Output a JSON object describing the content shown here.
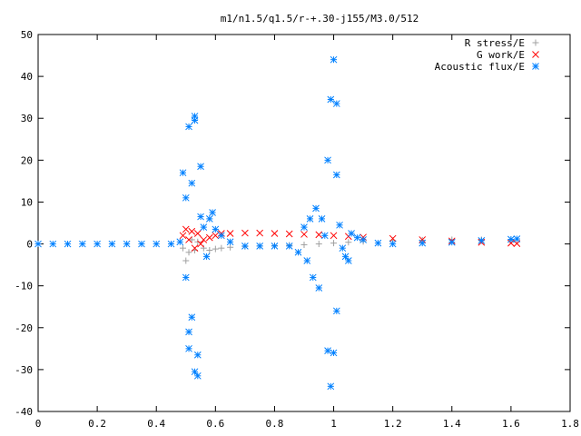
{
  "chart_data": {
    "type": "scatter",
    "title": "m1/n1.5/q1.5/r-+.30-j155/M3.0/512",
    "xlabel": "",
    "ylabel": "",
    "xlim": [
      0,
      1.8
    ],
    "ylim": [
      -40,
      50
    ],
    "xticks": [
      "0",
      "0.2",
      "0.4",
      "0.6",
      "0.8",
      "1",
      "1.2",
      "1.4",
      "1.6",
      "1.8"
    ],
    "yticks": [
      "50",
      "40",
      "30",
      "20",
      "10",
      "0",
      "-10",
      "-20",
      "-30",
      "-40"
    ],
    "grid": false,
    "legend_position": "top-right",
    "series": [
      {
        "name": "R stress/E",
        "marker": "plus",
        "color": "#a0a0a0",
        "points": [
          [
            0.49,
            -1.0
          ],
          [
            0.5,
            -4.0
          ],
          [
            0.51,
            -2.0
          ],
          [
            0.52,
            1.0
          ],
          [
            0.53,
            -1.5
          ],
          [
            0.54,
            0.5
          ],
          [
            0.56,
            -1.0
          ],
          [
            0.58,
            -1.5
          ],
          [
            0.6,
            -1.2
          ],
          [
            0.62,
            -1.0
          ],
          [
            0.65,
            -0.8
          ],
          [
            0.7,
            -0.6
          ],
          [
            0.75,
            -0.5
          ],
          [
            0.8,
            -0.4
          ],
          [
            0.85,
            -0.3
          ],
          [
            0.9,
            -0.2
          ],
          [
            0.95,
            0.0
          ],
          [
            1.0,
            0.2
          ],
          [
            1.05,
            0.4
          ],
          [
            1.1,
            0.6
          ],
          [
            1.2,
            0.8
          ],
          [
            1.3,
            0.9
          ],
          [
            1.4,
            1.0
          ],
          [
            1.5,
            1.0
          ],
          [
            1.6,
            1.0
          ]
        ]
      },
      {
        "name": "G work/E",
        "marker": "cross",
        "color": "#ff0000",
        "points": [
          [
            0.49,
            2.0
          ],
          [
            0.5,
            3.5
          ],
          [
            0.51,
            1.0
          ],
          [
            0.52,
            3.0
          ],
          [
            0.53,
            -1.0
          ],
          [
            0.54,
            2.5
          ],
          [
            0.55,
            0.0
          ],
          [
            0.56,
            1.0
          ],
          [
            0.58,
            1.5
          ],
          [
            0.6,
            2.0
          ],
          [
            0.62,
            2.5
          ],
          [
            0.65,
            2.5
          ],
          [
            0.7,
            2.6
          ],
          [
            0.75,
            2.6
          ],
          [
            0.8,
            2.5
          ],
          [
            0.85,
            2.4
          ],
          [
            0.9,
            2.3
          ],
          [
            0.95,
            2.2
          ],
          [
            1.0,
            2.0
          ],
          [
            1.05,
            1.8
          ],
          [
            1.1,
            1.6
          ],
          [
            1.2,
            1.3
          ],
          [
            1.3,
            1.0
          ],
          [
            1.4,
            0.7
          ],
          [
            1.5,
            0.4
          ],
          [
            1.6,
            0.2
          ],
          [
            1.62,
            0.1
          ]
        ]
      },
      {
        "name": "Acoustic flux/E",
        "marker": "star",
        "color": "#0080ff",
        "points": [
          [
            0.0,
            0.0
          ],
          [
            0.05,
            0.0
          ],
          [
            0.1,
            0.0
          ],
          [
            0.15,
            0.0
          ],
          [
            0.2,
            0.0
          ],
          [
            0.25,
            0.0
          ],
          [
            0.3,
            0.0
          ],
          [
            0.35,
            0.0
          ],
          [
            0.4,
            0.0
          ],
          [
            0.45,
            0.0
          ],
          [
            0.48,
            0.5
          ],
          [
            0.49,
            17.0
          ],
          [
            0.5,
            11.0
          ],
          [
            0.5,
            -8.0
          ],
          [
            0.51,
            28.0
          ],
          [
            0.51,
            -21.0
          ],
          [
            0.51,
            -25.0
          ],
          [
            0.52,
            14.5
          ],
          [
            0.52,
            -17.5
          ],
          [
            0.53,
            30.5
          ],
          [
            0.53,
            29.5
          ],
          [
            0.53,
            -30.5
          ],
          [
            0.54,
            -31.5
          ],
          [
            0.54,
            -26.5
          ],
          [
            0.55,
            18.5
          ],
          [
            0.55,
            6.5
          ],
          [
            0.56,
            4.0
          ],
          [
            0.57,
            -3.0
          ],
          [
            0.58,
            6.0
          ],
          [
            0.59,
            7.5
          ],
          [
            0.6,
            3.5
          ],
          [
            0.62,
            2.0
          ],
          [
            0.65,
            0.5
          ],
          [
            0.7,
            -0.5
          ],
          [
            0.75,
            -0.5
          ],
          [
            0.8,
            -0.5
          ],
          [
            0.85,
            -0.5
          ],
          [
            0.88,
            -2.0
          ],
          [
            0.9,
            4.0
          ],
          [
            0.91,
            -4.0
          ],
          [
            0.92,
            6.0
          ],
          [
            0.93,
            -8.0
          ],
          [
            0.94,
            8.5
          ],
          [
            0.95,
            -10.5
          ],
          [
            0.96,
            6.0
          ],
          [
            0.97,
            2.0
          ],
          [
            0.98,
            20.0
          ],
          [
            0.98,
            -25.5
          ],
          [
            0.99,
            34.5
          ],
          [
            0.99,
            -34.0
          ],
          [
            1.0,
            44.0
          ],
          [
            1.0,
            -26.0
          ],
          [
            1.01,
            33.5
          ],
          [
            1.01,
            -16.0
          ],
          [
            1.01,
            16.5
          ],
          [
            1.02,
            4.5
          ],
          [
            1.03,
            -1.0
          ],
          [
            1.04,
            -3.0
          ],
          [
            1.05,
            -4.0
          ],
          [
            1.06,
            2.5
          ],
          [
            1.08,
            1.5
          ],
          [
            1.1,
            1.0
          ],
          [
            1.15,
            0.2
          ],
          [
            1.2,
            0.0
          ],
          [
            1.3,
            0.2
          ],
          [
            1.4,
            0.4
          ],
          [
            1.5,
            0.8
          ],
          [
            1.6,
            1.1
          ],
          [
            1.62,
            1.2
          ]
        ]
      }
    ]
  }
}
